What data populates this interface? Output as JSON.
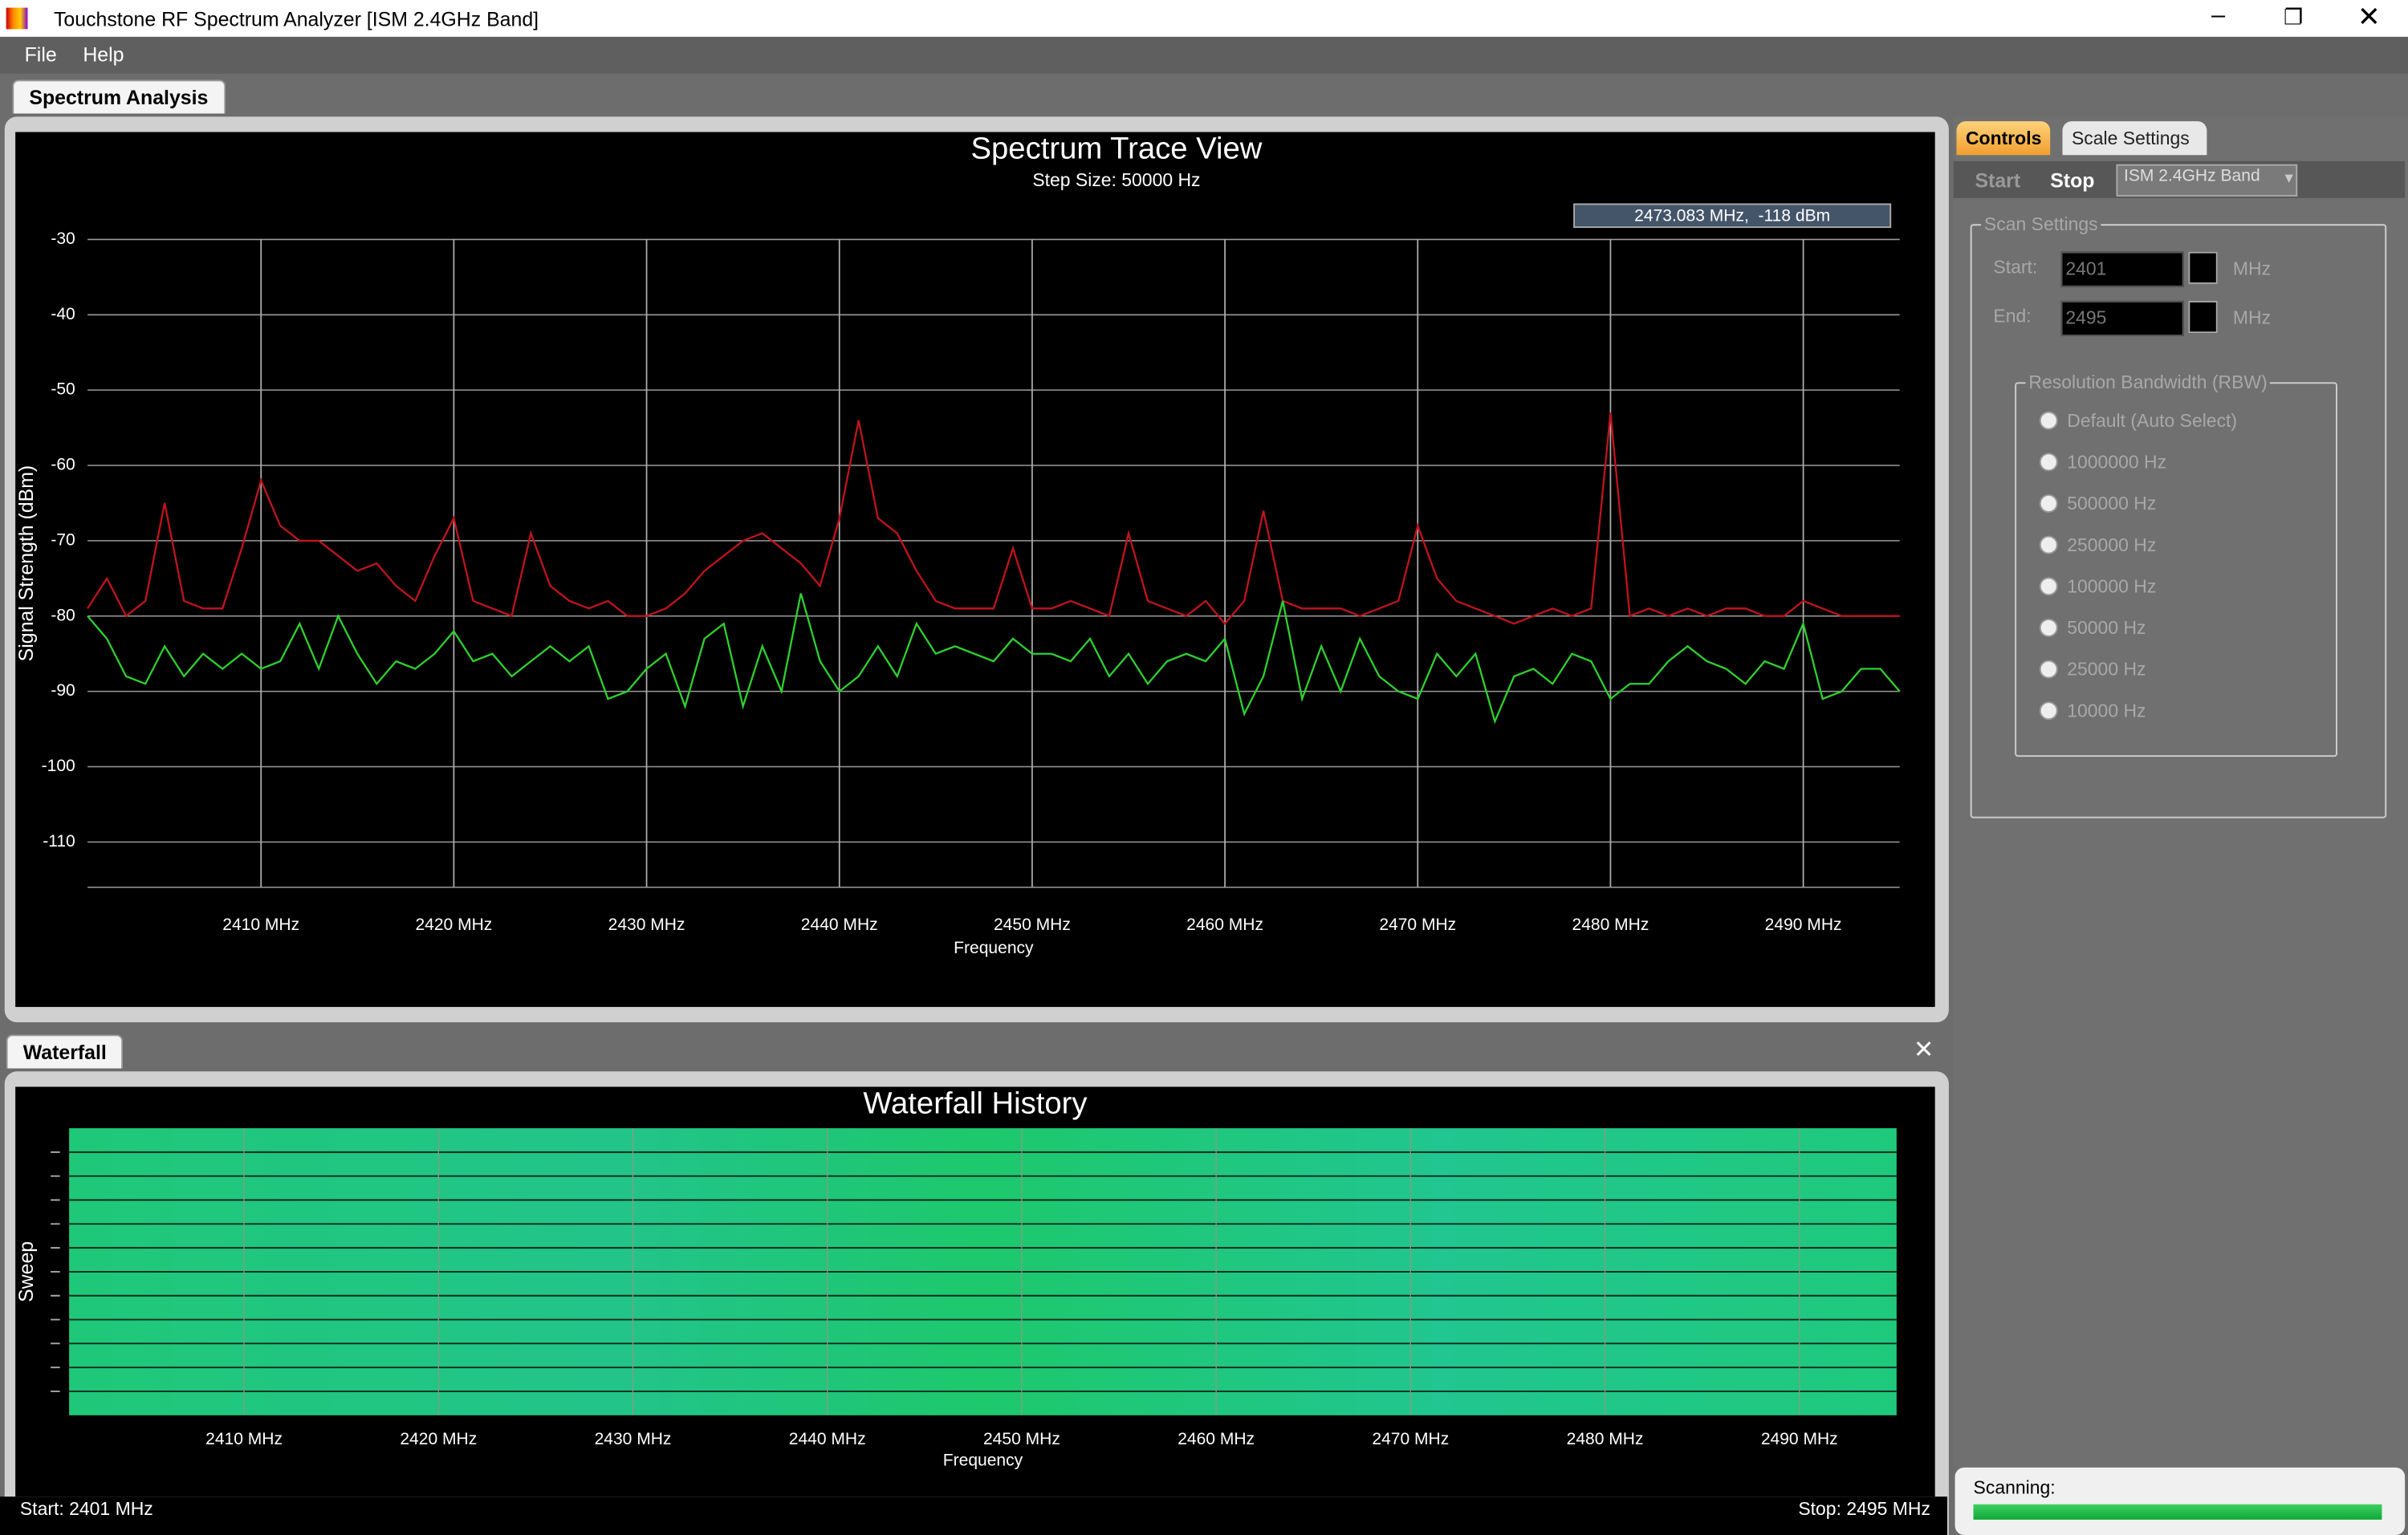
{
  "window": {
    "title": "Touchstone RF Spectrum Analyzer [ISM 2.4GHz Band]"
  },
  "menu": [
    "File",
    "Help"
  ],
  "tabs": {
    "main": "Spectrum Analysis",
    "waterfall": "Waterfall",
    "controls": "Controls",
    "scale": "Scale Settings"
  },
  "controls": {
    "start_button": "Start",
    "stop_button": "Stop",
    "band": "ISM 2.4GHz Band",
    "group": "Scan Settings",
    "start_label": "Start:",
    "start_value": "2401",
    "end_label": "End:",
    "end_value": "2495",
    "unit": "MHz",
    "rbw_group": "Resolution Bandwidth (RBW)",
    "rbw_options": [
      "Default (Auto Select)",
      "1000000 Hz",
      "500000 Hz",
      "250000 Hz",
      "100000 Hz",
      "50000 Hz",
      "25000 Hz",
      "10000 Hz"
    ]
  },
  "status": {
    "scanning": "Scanning:",
    "start": "Start: 2401 MHz",
    "stop": "Stop: 2495 MHz"
  },
  "chart_data": [
    {
      "type": "line",
      "title": "Spectrum Trace View",
      "subtitle": "Step Size: 50000 Hz",
      "annotation": "2473.083 MHz,  -118 dBm",
      "x_label": "Frequency",
      "y_label": "Signal Strength (dBm)",
      "x": [
        2401,
        2402,
        2403,
        2404,
        2405,
        2406,
        2407,
        2408,
        2409,
        2410,
        2411,
        2412,
        2413,
        2414,
        2415,
        2416,
        2417,
        2418,
        2419,
        2420,
        2421,
        2422,
        2423,
        2424,
        2425,
        2426,
        2427,
        2428,
        2429,
        2430,
        2431,
        2432,
        2433,
        2434,
        2435,
        2436,
        2437,
        2438,
        2439,
        2440,
        2441,
        2442,
        2443,
        2444,
        2445,
        2446,
        2447,
        2448,
        2449,
        2450,
        2451,
        2452,
        2453,
        2454,
        2455,
        2456,
        2457,
        2458,
        2459,
        2460,
        2461,
        2462,
        2463,
        2464,
        2465,
        2466,
        2467,
        2468,
        2469,
        2470,
        2471,
        2472,
        2473,
        2474,
        2475,
        2476,
        2477,
        2478,
        2479,
        2480,
        2481,
        2482,
        2483,
        2484,
        2485,
        2486,
        2487,
        2488,
        2489,
        2490,
        2491,
        2492,
        2493,
        2494,
        2495
      ],
      "series": [
        {
          "color": "#c0141c",
          "values": [
            -79,
            -75,
            -80,
            -78,
            -65,
            -78,
            -79,
            -79,
            -71,
            -62,
            -68,
            -70,
            -70,
            -72,
            -74,
            -73,
            -76,
            -78,
            -72,
            -67,
            -78,
            -79,
            -80,
            -69,
            -76,
            -78,
            -79,
            -78,
            -80,
            -80,
            -79,
            -77,
            -74,
            -72,
            -70,
            -69,
            -71,
            -73,
            -76,
            -67,
            -54,
            -67,
            -69,
            -74,
            -78,
            -79,
            -79,
            -79,
            -71,
            -79,
            -79,
            -78,
            -79,
            -80,
            -69,
            -78,
            -79,
            -80,
            -78,
            -81,
            -78,
            -66,
            -78,
            -79,
            -79,
            -79,
            -80,
            -79,
            -78,
            -68,
            -75,
            -78,
            -79,
            -80,
            -81,
            -80,
            -79,
            -80,
            -79,
            -53,
            -80,
            -79,
            -80,
            -79,
            -80,
            -79,
            -79,
            -80,
            -80,
            -78,
            -79,
            -80,
            -80,
            -80,
            -80
          ]
        },
        {
          "color": "#2ed12e",
          "values": [
            -80,
            -83,
            -88,
            -89,
            -84,
            -88,
            -85,
            -87,
            -85,
            -87,
            -86,
            -81,
            -87,
            -80,
            -85,
            -89,
            -86,
            -87,
            -85,
            -82,
            -86,
            -85,
            -88,
            -86,
            -84,
            -86,
            -84,
            -91,
            -90,
            -87,
            -85,
            -92,
            -83,
            -81,
            -92,
            -84,
            -90,
            -77,
            -86,
            -90,
            -88,
            -84,
            -88,
            -81,
            -85,
            -84,
            -85,
            -86,
            -83,
            -85,
            -85,
            -86,
            -83,
            -88,
            -85,
            -89,
            -86,
            -85,
            -86,
            -83,
            -93,
            -88,
            -78,
            -91,
            -84,
            -90,
            -83,
            -88,
            -90,
            -91,
            -85,
            -88,
            -85,
            -94,
            -88,
            -87,
            -89,
            -85,
            -86,
            -91,
            -89,
            -89,
            -86,
            -84,
            -86,
            -87,
            -89,
            -86,
            -87,
            -81,
            -91,
            -90,
            -87,
            -87,
            -90
          ]
        }
      ],
      "xlim": [
        2401,
        2495
      ],
      "ylim": [
        -116,
        -30
      ],
      "xticks": [
        {
          "value": 2410,
          "label": "2410 MHz"
        },
        {
          "value": 2420,
          "label": "2420 MHz"
        },
        {
          "value": 2430,
          "label": "2430 MHz"
        },
        {
          "value": 2440,
          "label": "2440 MHz"
        },
        {
          "value": 2450,
          "label": "2450 MHz"
        },
        {
          "value": 2460,
          "label": "2460 MHz"
        },
        {
          "value": 2470,
          "label": "2470 MHz"
        },
        {
          "value": 2480,
          "label": "2480 MHz"
        },
        {
          "value": 2490,
          "label": "2490 MHz"
        }
      ],
      "yticks": [
        -30,
        -40,
        -50,
        -60,
        -70,
        -80,
        -90,
        -100,
        -110
      ],
      "grid": true
    },
    {
      "type": "heatmap",
      "title": "Waterfall History",
      "x_label": "Frequency",
      "y_label": "Sweep",
      "xlim": [
        2401,
        2495
      ],
      "xticks": [
        {
          "value": 2410,
          "label": "2410 MHz"
        },
        {
          "value": 2420,
          "label": "2420 MHz"
        },
        {
          "value": 2430,
          "label": "2430 MHz"
        },
        {
          "value": 2440,
          "label": "2440 MHz"
        },
        {
          "value": 2450,
          "label": "2450 MHz"
        },
        {
          "value": 2460,
          "label": "2460 MHz"
        },
        {
          "value": 2470,
          "label": "2470 MHz"
        },
        {
          "value": 2480,
          "label": "2480 MHz"
        },
        {
          "value": 2490,
          "label": "2490 MHz"
        }
      ]
    }
  ]
}
